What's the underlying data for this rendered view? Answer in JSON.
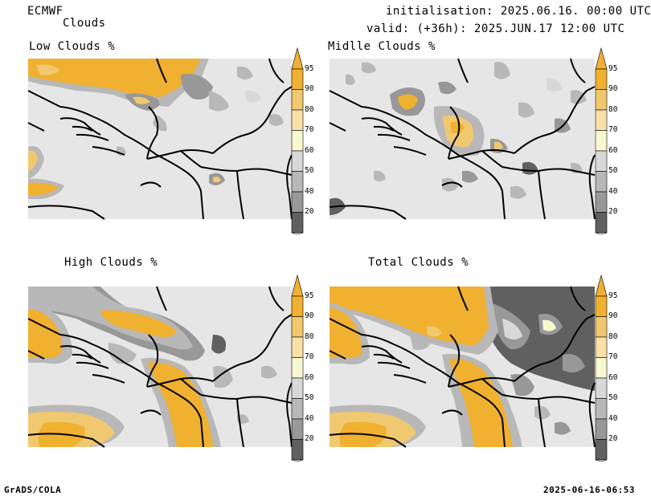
{
  "header": {
    "model": "ECMWF",
    "product": "Clouds",
    "init": "initialisation: 2025.06.16. 00:00 UTC",
    "valid": "valid: (+36h): 2025.JUN.17 12:00 UTC"
  },
  "panels": [
    {
      "title": "Low Clouds %"
    },
    {
      "title": "Midlle Clouds %"
    },
    {
      "title": "High Clouds %"
    },
    {
      "title": "Total Clouds %"
    }
  ],
  "colorbar": {
    "levels": [
      "95",
      "90",
      "80",
      "70",
      "60",
      "50",
      "40",
      "20"
    ],
    "colors": {
      "over": "#f0b030",
      "c95": "#f0b030",
      "c90": "#f0c870",
      "c80": "#f8e0a8",
      "c70": "#f8f8d0",
      "c60": "#d8d8d8",
      "c50": "#b8b8b8",
      "c40": "#989898",
      "c20": "#606060",
      "under": "#f4f4f4",
      "background": "#e6e6e6"
    }
  },
  "footer": {
    "left": "GrADS/COLA",
    "right": "2025-06-16-06:53"
  }
}
